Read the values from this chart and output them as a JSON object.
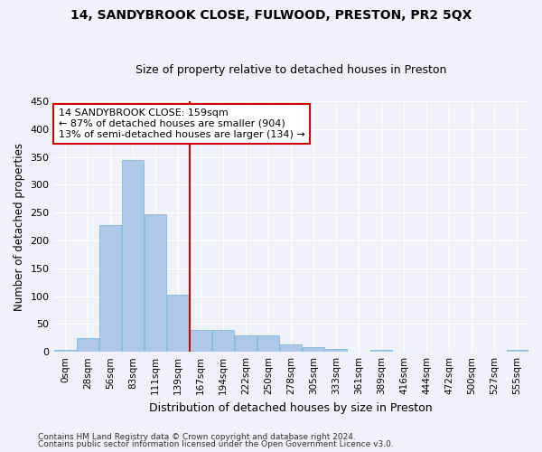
{
  "title": "14, SANDYBROOK CLOSE, FULWOOD, PRESTON, PR2 5QX",
  "subtitle": "Size of property relative to detached houses in Preston",
  "xlabel": "Distribution of detached houses by size in Preston",
  "ylabel": "Number of detached properties",
  "bin_labels": [
    "0sqm",
    "28sqm",
    "56sqm",
    "83sqm",
    "111sqm",
    "139sqm",
    "167sqm",
    "194sqm",
    "222sqm",
    "250sqm",
    "278sqm",
    "305sqm",
    "333sqm",
    "361sqm",
    "389sqm",
    "416sqm",
    "444sqm",
    "472sqm",
    "500sqm",
    "527sqm",
    "555sqm"
  ],
  "bar_values": [
    3,
    25,
    227,
    344,
    247,
    102,
    40,
    40,
    30,
    30,
    13,
    9,
    5,
    0,
    3,
    0,
    0,
    0,
    0,
    0,
    3
  ],
  "bar_color": "#aec9e8",
  "bar_edgecolor": "#7aafd4",
  "annotation_line1": "14 SANDYBROOK CLOSE: 159sqm",
  "annotation_line2": "← 87% of detached houses are smaller (904)",
  "annotation_line3": "13% of semi-detached houses are larger (134) →",
  "vline_color": "#cc0000",
  "footer1": "Contains HM Land Registry data © Crown copyright and database right 2024.",
  "footer2": "Contains public sector information licensed under the Open Government Licence v3.0.",
  "background_color": "#eef2f9",
  "grid_color": "#ffffff",
  "ylim": [
    0,
    450
  ],
  "yticks": [
    0,
    50,
    100,
    150,
    200,
    250,
    300,
    350,
    400,
    450
  ],
  "vline_x": 5.5
}
